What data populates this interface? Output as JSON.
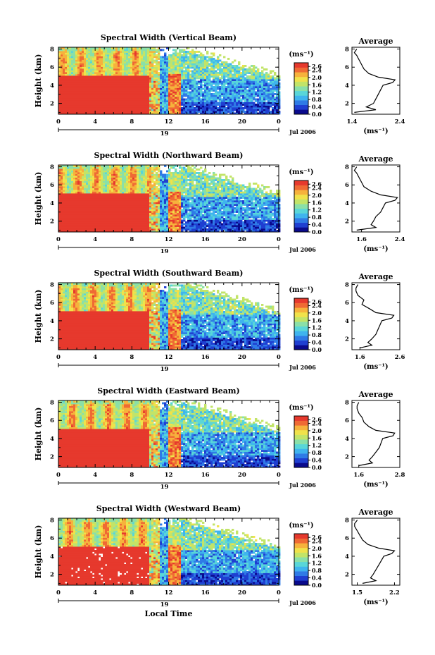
{
  "chart_data": {
    "type": "heatmap",
    "shared": {
      "xlabel": "Local Time",
      "ylabel": "Height (km)",
      "x_ticks": [
        "0",
        "4",
        "8",
        "12",
        "16",
        "20",
        "0"
      ],
      "x_range_hours": [
        0,
        24
      ],
      "y_ticks": [
        "2",
        "4",
        "6",
        "8"
      ],
      "y_range_km": [
        0.8,
        8.2
      ],
      "date_day": "19",
      "date_month_year": "Jul 2006",
      "colorbar_unit": "(ms⁻¹)",
      "colorbar_ticks": [
        "2.6",
        "2.4",
        "2.0",
        "1.6",
        "1.2",
        "0.8",
        "0.4",
        "0.0"
      ],
      "colorbar_range": [
        0.0,
        2.8
      ],
      "palette": [
        "#0a0a8c",
        "#1f3fd1",
        "#2f7be6",
        "#3fb4ee",
        "#59d6d8",
        "#8ae0a8",
        "#c2e468",
        "#f0e24a",
        "#f6b23c",
        "#ef6a34",
        "#e6392d"
      ],
      "profile_title": "Average",
      "profile_unit": "(ms⁻¹)",
      "profile_y_ticks": [
        "2",
        "4",
        "6",
        "8"
      ]
    },
    "panels": [
      {
        "title": "Spectral Width (Vertical Beam)",
        "profile_x_ticks": [
          "1.4",
          "2.4"
        ],
        "profile_x_range": [
          1.4,
          2.4
        ],
        "profile": [
          [
            1.0,
            1.45
          ],
          [
            1.3,
            1.9
          ],
          [
            1.6,
            1.7
          ],
          [
            2.0,
            1.85
          ],
          [
            2.5,
            1.9
          ],
          [
            3.0,
            1.95
          ],
          [
            3.5,
            2.0
          ],
          [
            4.0,
            2.05
          ],
          [
            4.3,
            2.25
          ],
          [
            4.6,
            2.3
          ],
          [
            4.9,
            1.95
          ],
          [
            5.3,
            1.75
          ],
          [
            5.8,
            1.65
          ],
          [
            6.3,
            1.6
          ],
          [
            6.8,
            1.55
          ],
          [
            7.3,
            1.5
          ],
          [
            7.6,
            1.45
          ],
          [
            8.0,
            1.5
          ]
        ]
      },
      {
        "title": "Spectral Width (Northward Beam)",
        "profile_x_ticks": [
          "1.6",
          "2.4"
        ],
        "profile_x_range": [
          1.4,
          2.4
        ],
        "profile": [
          [
            1.0,
            1.5
          ],
          [
            1.3,
            1.9
          ],
          [
            1.6,
            1.8
          ],
          [
            2.0,
            1.85
          ],
          [
            2.5,
            1.9
          ],
          [
            3.0,
            2.0
          ],
          [
            3.5,
            2.05
          ],
          [
            4.0,
            2.1
          ],
          [
            4.3,
            2.3
          ],
          [
            4.6,
            2.35
          ],
          [
            4.9,
            2.0
          ],
          [
            5.3,
            1.8
          ],
          [
            5.8,
            1.65
          ],
          [
            6.3,
            1.6
          ],
          [
            6.8,
            1.55
          ],
          [
            7.3,
            1.5
          ],
          [
            7.6,
            1.45
          ],
          [
            8.0,
            1.5
          ]
        ]
      },
      {
        "title": "Spectral Width (Southward Beam)",
        "profile_x_ticks": [
          "1.6",
          "2.6"
        ],
        "profile_x_range": [
          1.4,
          2.6
        ],
        "profile": [
          [
            1.0,
            1.6
          ],
          [
            1.3,
            1.9
          ],
          [
            1.6,
            1.8
          ],
          [
            2.0,
            1.9
          ],
          [
            2.5,
            2.0
          ],
          [
            3.0,
            2.05
          ],
          [
            3.5,
            2.1
          ],
          [
            4.0,
            2.15
          ],
          [
            4.3,
            2.4
          ],
          [
            4.6,
            2.45
          ],
          [
            4.9,
            2.0
          ],
          [
            5.3,
            1.85
          ],
          [
            5.8,
            1.65
          ],
          [
            6.3,
            1.7
          ],
          [
            6.8,
            1.55
          ],
          [
            7.3,
            1.5
          ],
          [
            7.6,
            1.5
          ],
          [
            8.0,
            1.55
          ]
        ]
      },
      {
        "title": "Spectral Width (Eastward Beam)",
        "profile_x_ticks": [
          "1.6",
          "2.8"
        ],
        "profile_x_range": [
          1.4,
          2.8
        ],
        "profile": [
          [
            1.0,
            1.6
          ],
          [
            1.3,
            2.0
          ],
          [
            1.6,
            1.9
          ],
          [
            2.0,
            2.0
          ],
          [
            2.5,
            2.1
          ],
          [
            3.0,
            2.2
          ],
          [
            3.5,
            2.25
          ],
          [
            4.0,
            2.3
          ],
          [
            4.3,
            2.6
          ],
          [
            4.6,
            2.65
          ],
          [
            4.9,
            2.1
          ],
          [
            5.3,
            1.9
          ],
          [
            5.8,
            1.75
          ],
          [
            6.3,
            1.7
          ],
          [
            6.8,
            1.6
          ],
          [
            7.3,
            1.55
          ],
          [
            7.6,
            1.55
          ],
          [
            8.0,
            1.6
          ]
        ]
      },
      {
        "title": "Spectral Width (Westward Beam)",
        "profile_x_ticks": [
          "1.5",
          "2.2"
        ],
        "profile_x_range": [
          1.4,
          2.3
        ],
        "profile": [
          [
            1.0,
            1.6
          ],
          [
            1.3,
            1.85
          ],
          [
            1.6,
            1.75
          ],
          [
            2.0,
            1.8
          ],
          [
            2.5,
            1.85
          ],
          [
            3.0,
            1.9
          ],
          [
            3.5,
            1.95
          ],
          [
            4.0,
            2.0
          ],
          [
            4.3,
            2.15
          ],
          [
            4.6,
            2.2
          ],
          [
            4.9,
            1.9
          ],
          [
            5.3,
            1.7
          ],
          [
            5.8,
            1.6
          ],
          [
            6.3,
            1.55
          ],
          [
            6.8,
            1.5
          ],
          [
            7.3,
            1.45
          ],
          [
            7.6,
            1.45
          ],
          [
            8.0,
            1.5
          ]
        ]
      }
    ]
  }
}
